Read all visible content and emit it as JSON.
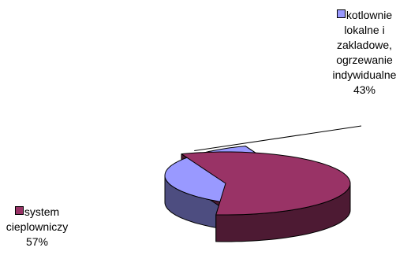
{
  "chart_data": {
    "type": "pie",
    "style": "3d-exploded",
    "slices": [
      {
        "label": "kotlownie lokalne i zakladowe, ogrzewanie indywidualne",
        "label_lines": [
          "kotlownie",
          "lokalne i",
          "zakladowe,",
          "ogrzewanie",
          "indywidualne"
        ],
        "percent_label": "43%",
        "value": 43,
        "color": "#9999ff",
        "side_color": "#4d4d80"
      },
      {
        "label": "system cieplowniczy",
        "label_lines": [
          "system",
          "cieplowniczy"
        ],
        "percent_label": "57%",
        "value": 57,
        "color": "#993366",
        "side_color": "#4d1a33"
      }
    ]
  }
}
